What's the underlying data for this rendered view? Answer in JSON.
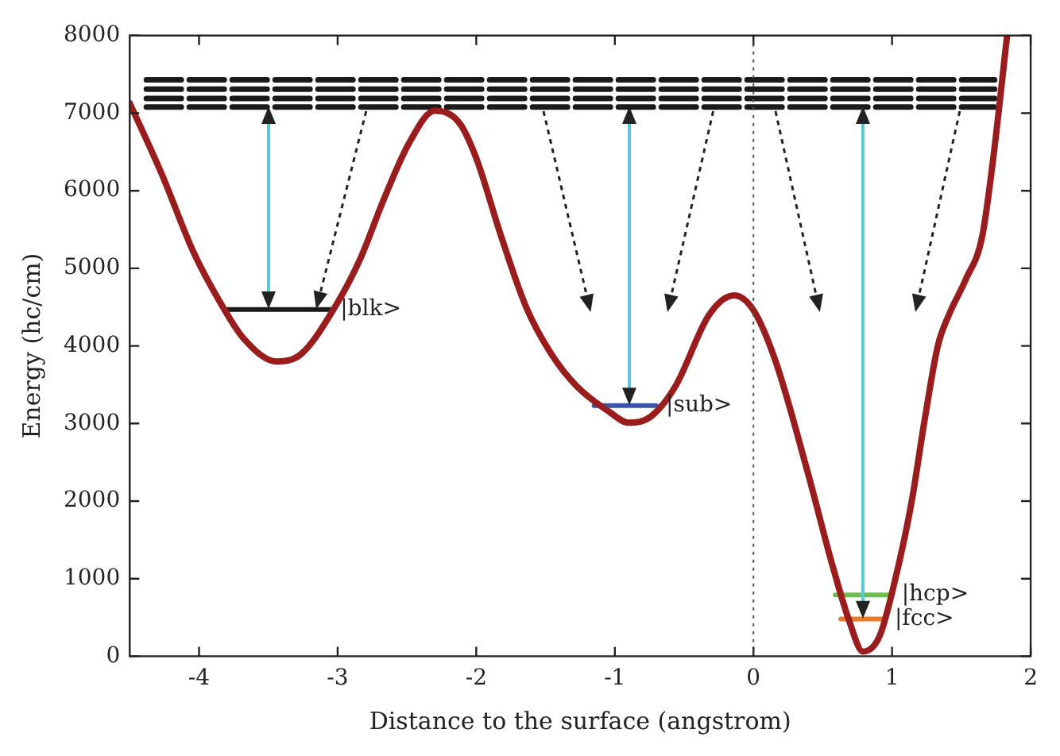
{
  "chart_data": {
    "type": "line",
    "xlabel": "Distance to the surface (angstrom)",
    "ylabel": "Energy (hc/cm)",
    "xlim": [
      -4.5,
      2
    ],
    "xticks": [
      -4,
      -3,
      -2,
      -1,
      0,
      1,
      2
    ],
    "ylim": [
      0,
      8000
    ],
    "yticks": [
      0,
      1000,
      2000,
      3000,
      4000,
      5000,
      6000,
      7000,
      8000
    ],
    "grid": false,
    "legend": false,
    "annotations": [
      {
        "text": "|blk>",
        "x": -3.05,
        "y": 4470
      },
      {
        "text": "|sub>",
        "x": -0.7,
        "y": 3230
      },
      {
        "text": "|hcp>",
        "x": 1.0,
        "y": 790
      },
      {
        "text": "|fcc>",
        "x": 0.95,
        "y": 480
      }
    ],
    "ref_lines": [
      {
        "axis": "x",
        "value": 0,
        "color": "#555555",
        "line_style": "dotted"
      }
    ],
    "series": [
      {
        "color": "#9b1c1c",
        "x": [
          -4.5,
          -4.27,
          -4.04,
          -3.86,
          -3.68,
          -3.44,
          -3.26,
          -3.02,
          -2.84,
          -2.66,
          -2.48,
          -2.3,
          -2.12,
          -2.0,
          -1.82,
          -1.64,
          -1.46,
          -1.28,
          -1.04,
          -0.9,
          -0.74,
          -0.56,
          -0.32,
          -0.14,
          0,
          0.16,
          0.39,
          0.57,
          0.69,
          0.79,
          0.91,
          1.02,
          1.14,
          1.23,
          1.33,
          1.41,
          1.53,
          1.65,
          1.73,
          1.83
        ],
        "values": [
          7130,
          6220,
          5210,
          4600,
          4100,
          3800,
          3900,
          4500,
          5110,
          5920,
          6630,
          7030,
          6870,
          6420,
          5410,
          4500,
          3900,
          3490,
          3150,
          3010,
          3090,
          3490,
          4400,
          4650,
          4460,
          3800,
          2380,
          1170,
          460,
          60,
          260,
          970,
          1980,
          2990,
          4000,
          4400,
          4850,
          5410,
          6420,
          8000
        ]
      },
      {
        "color": "#1a1a1a",
        "x": [
          -3.8,
          -3.05
        ],
        "values": [
          4470,
          4470
        ]
      },
      {
        "color": "#3a55a8",
        "x": [
          -1.15,
          -0.7
        ],
        "values": [
          3230,
          3230
        ]
      },
      {
        "color": "#6abf4b",
        "x": [
          0.59,
          1.0
        ],
        "values": [
          790,
          790
        ]
      },
      {
        "color": "#e87a2a",
        "x": [
          0.63,
          0.95
        ],
        "values": [
          480,
          480
        ]
      },
      {
        "color": "#1a1a1a",
        "line_style": "dashed",
        "x": [
          -4.38,
          1.74
        ],
        "values": [
          7430,
          7430
        ]
      },
      {
        "color": "#1a1a1a",
        "line_style": "dashed",
        "x": [
          -4.38,
          1.74
        ],
        "values": [
          7310,
          7310
        ]
      },
      {
        "color": "#1a1a1a",
        "line_style": "dashed",
        "x": [
          -4.38,
          1.74
        ],
        "values": [
          7190,
          7190
        ]
      },
      {
        "color": "#1a1a1a",
        "line_style": "dashed",
        "x": [
          -4.38,
          1.74
        ],
        "values": [
          7080,
          7080
        ]
      }
    ]
  }
}
